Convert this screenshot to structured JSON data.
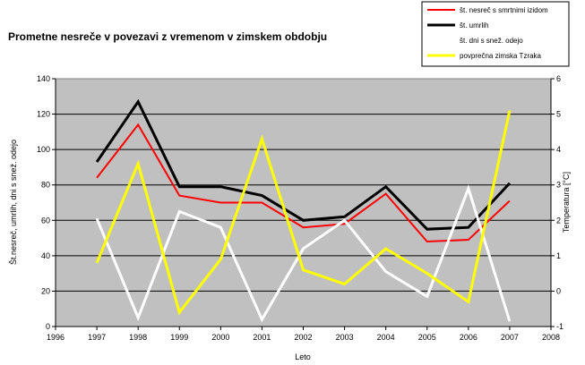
{
  "chart_data": {
    "type": "line",
    "title": "Prometne nesreče v povezavi z vremenom v zimskem obdobju",
    "xlabel": "Leto",
    "ylabel": "Št.nesreč, umrlih, dni s snež. odejo",
    "y2label": "Temperatura [°C]",
    "xlim": [
      1996,
      2008
    ],
    "ylim": [
      0,
      140
    ],
    "y2lim": [
      -1,
      6
    ],
    "x_ticks": [
      "1996",
      "1997",
      "1998",
      "1999",
      "2000",
      "2001",
      "2002",
      "2003",
      "2004",
      "2005",
      "2006",
      "2007",
      "2008"
    ],
    "y_ticks": [
      "0",
      "20",
      "40",
      "60",
      "80",
      "100",
      "120",
      "140"
    ],
    "y2_ticks": [
      "-1",
      "0",
      "1",
      "2",
      "3",
      "4",
      "5",
      "6"
    ],
    "grid": true,
    "legend_position": "top-right",
    "x": [
      1997,
      1998,
      1999,
      2000,
      2001,
      2002,
      2003,
      2004,
      2005,
      2006,
      2007
    ],
    "series": [
      {
        "name": "št. nesreč s smrtnimi izidom",
        "color": "#ff0000",
        "axis": "left",
        "width": 2,
        "values": [
          84,
          114,
          74,
          70,
          70,
          56,
          58,
          75,
          48,
          49,
          71
        ]
      },
      {
        "name": "št. umrlih",
        "color": "#000000",
        "axis": "left",
        "width": 3,
        "values": [
          93,
          127,
          79,
          79,
          74,
          60,
          62,
          79,
          55,
          56,
          81
        ]
      },
      {
        "name": "št. dni s snež. odejo",
        "color": "#ffffff",
        "axis": "left",
        "width": 3,
        "values": [
          61,
          5,
          65,
          56,
          4,
          44,
          60,
          31,
          17,
          78,
          3
        ]
      },
      {
        "name": "povprečna zimska Tzraka",
        "color": "#ffff00",
        "axis": "right",
        "width": 3,
        "values": [
          0.8,
          3.6,
          -0.6,
          0.9,
          4.3,
          0.6,
          0.2,
          1.2,
          0.5,
          -0.3,
          5.1
        ]
      }
    ]
  }
}
